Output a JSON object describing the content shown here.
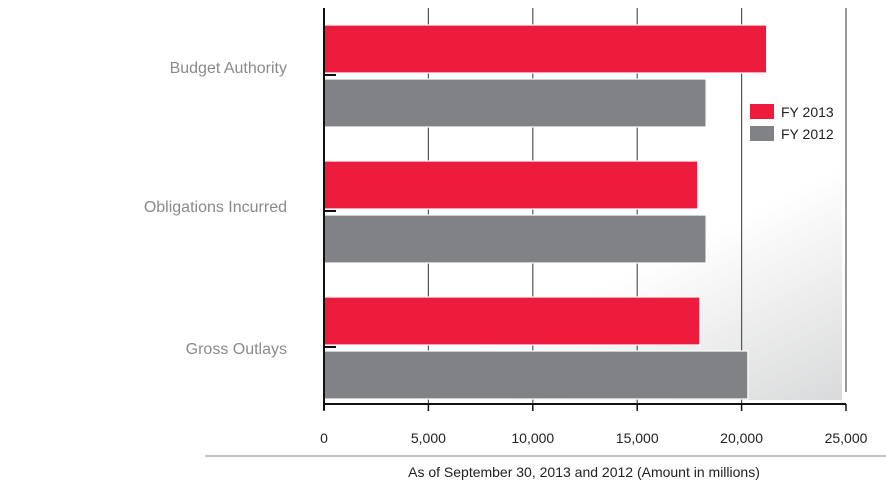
{
  "chart_data": {
    "type": "bar",
    "orientation": "horizontal",
    "categories": [
      "Budget Authority",
      "Obligations Incurred",
      "Gross Outlays"
    ],
    "series": [
      {
        "name": "FY 2013",
        "color": "#ed1b3c",
        "values": [
          21200,
          17900,
          18000
        ]
      },
      {
        "name": "FY 2012",
        "color": "#808285",
        "values": [
          18300,
          18300,
          20300
        ]
      }
    ],
    "xlim": [
      0,
      25000
    ],
    "ticks": [
      "0",
      "5,000",
      "10,000",
      "15,000",
      "20,000",
      "25,000"
    ],
    "tick_values": [
      0,
      5000,
      10000,
      15000,
      20000,
      25000
    ],
    "xlabel": "As of September 30, 2013 and 2012 (Amount in millions)",
    "legend_position": "right",
    "grid": true
  }
}
